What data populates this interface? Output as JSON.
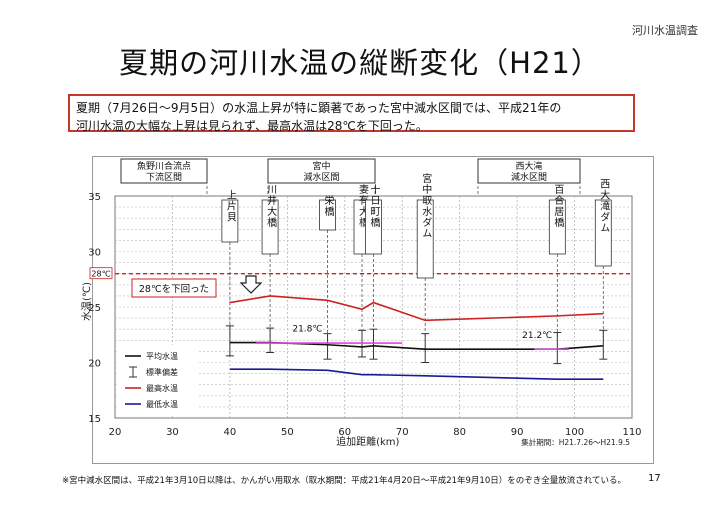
{
  "header": {
    "corner_label": "河川水温調査"
  },
  "title": "夏期の河川水温の縦断変化（H21）",
  "summary": {
    "line1": "夏期（7月26日〜9月5日）の水温上昇が特に顕著であった宮中減水区間では、平成21年の",
    "line2": "河川水温の大幅な上昇は見られず、最高水温は28℃を下回った。"
  },
  "sections": [
    {
      "line1": "魚野川合流点",
      "line2": "下流区間"
    },
    {
      "line1": "宮中",
      "line2": "減水区間"
    },
    {
      "line1": "西大滝",
      "line2": "減水区間"
    }
  ],
  "stations": [
    {
      "label": "上片貝"
    },
    {
      "label": "川井大橋"
    },
    {
      "label": "栄橋"
    },
    {
      "label": "妻有大橋"
    },
    {
      "label": "十日町橋"
    },
    {
      "label": "宮中取水ダム"
    },
    {
      "label": "百合居橋"
    },
    {
      "label": "西大滝ダム"
    }
  ],
  "colors": {
    "max": "#cc2222",
    "min": "#1a1a99",
    "avg": "#111111",
    "ref": "#cc2222",
    "avg_highlight": "#dd44dd"
  },
  "chart_data": {
    "type": "line",
    "xlabel": "追加距離(km)",
    "ylabel": "水温(℃)",
    "xlim": [
      20,
      110
    ],
    "ylim": [
      15,
      35
    ],
    "xticks": [
      20,
      30,
      40,
      50,
      60,
      70,
      80,
      90,
      100,
      110
    ],
    "yticks": [
      15,
      20,
      25,
      30,
      35
    ],
    "grid": true,
    "legend_position": "bottom-left",
    "x": [
      40,
      47,
      57,
      63,
      65,
      74,
      97,
      105
    ],
    "series": [
      {
        "name": "平均水温",
        "values": [
          21.8,
          21.8,
          21.6,
          21.4,
          21.5,
          21.2,
          21.2,
          21.5
        ]
      },
      {
        "name": "標準偏差",
        "low": [
          20.6,
          20.9,
          20.3,
          20.5,
          20.3,
          20.0,
          19.9,
          20.3
        ],
        "high": [
          23.3,
          23.1,
          22.6,
          22.9,
          23.0,
          22.6,
          22.7,
          22.9
        ]
      },
      {
        "name": "最高水温",
        "values": [
          25.4,
          26.0,
          25.6,
          24.8,
          25.4,
          23.8,
          24.2,
          24.4
        ]
      },
      {
        "name": "最低水温",
        "values": [
          19.4,
          19.4,
          19.3,
          18.9,
          18.9,
          18.8,
          18.5,
          18.5
        ]
      }
    ],
    "reference_line": {
      "value": 28,
      "label": "28℃"
    },
    "annotations": [
      {
        "text": "28℃を下回った"
      },
      {
        "text": "21.8℃"
      },
      {
        "text": "21.2℃"
      }
    ],
    "period_note": "集計期間：H21.7.26〜H21.9.5"
  },
  "footnote": "※宮中減水区間は、平成21年3月10日以降は、かんがい用取水（取水期間：平成21年4月20日〜平成21年9月10日）をのぞき全量放流されている。",
  "page_number": "17"
}
